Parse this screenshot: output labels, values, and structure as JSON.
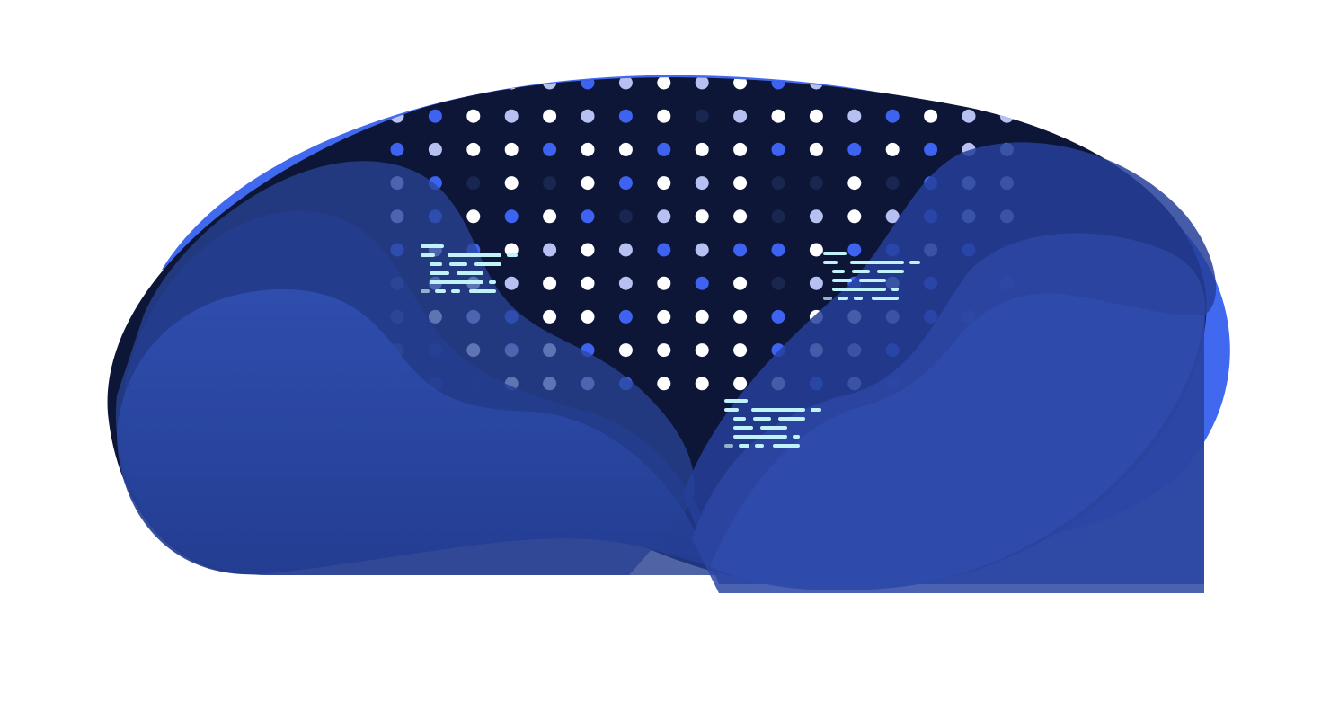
{
  "illustration": {
    "subject": "abstract-blob-with-dot-grid-and-code-snippets",
    "colors": {
      "background": "#ffffff",
      "accent_blue": "#4169f0",
      "blob_blue": "#2f4fb0",
      "blob_mid": "#26409a",
      "blob_dark": "#223a8c",
      "night": "#0e1637",
      "dot_white": "#ffffff",
      "dot_light": "#b6c1f2",
      "dot_blue": "#3d63f0",
      "dot_faint": "#182650",
      "code_cyan": "#bff3f8",
      "code_muted": "#8fb4c8"
    },
    "dot_palette": [
      "white",
      "light",
      "blue",
      "faint"
    ],
    "dot_pattern": [
      "fwwwlblwlwbllwbfb",
      "lbwlwlbwflwwlbwll",
      "blwwbwwbwwbwbwbll",
      "lbfwfwbwlwffwfbll",
      "lbwbwbflwwflwlbll",
      "blbwlwlblbbwbblbf",
      "llwlwwlwbwflblbfl",
      "lwlbwwbwwwbwwlbll",
      "lbwlwbwwwwbwlbfll",
      "lbfwwlbwwwwblbfll"
    ],
    "code_snippets": [
      {
        "name": "code-snippet-left",
        "lines": 6
      },
      {
        "name": "code-snippet-right",
        "lines": 6
      },
      {
        "name": "code-snippet-bottom",
        "lines": 6
      }
    ]
  }
}
